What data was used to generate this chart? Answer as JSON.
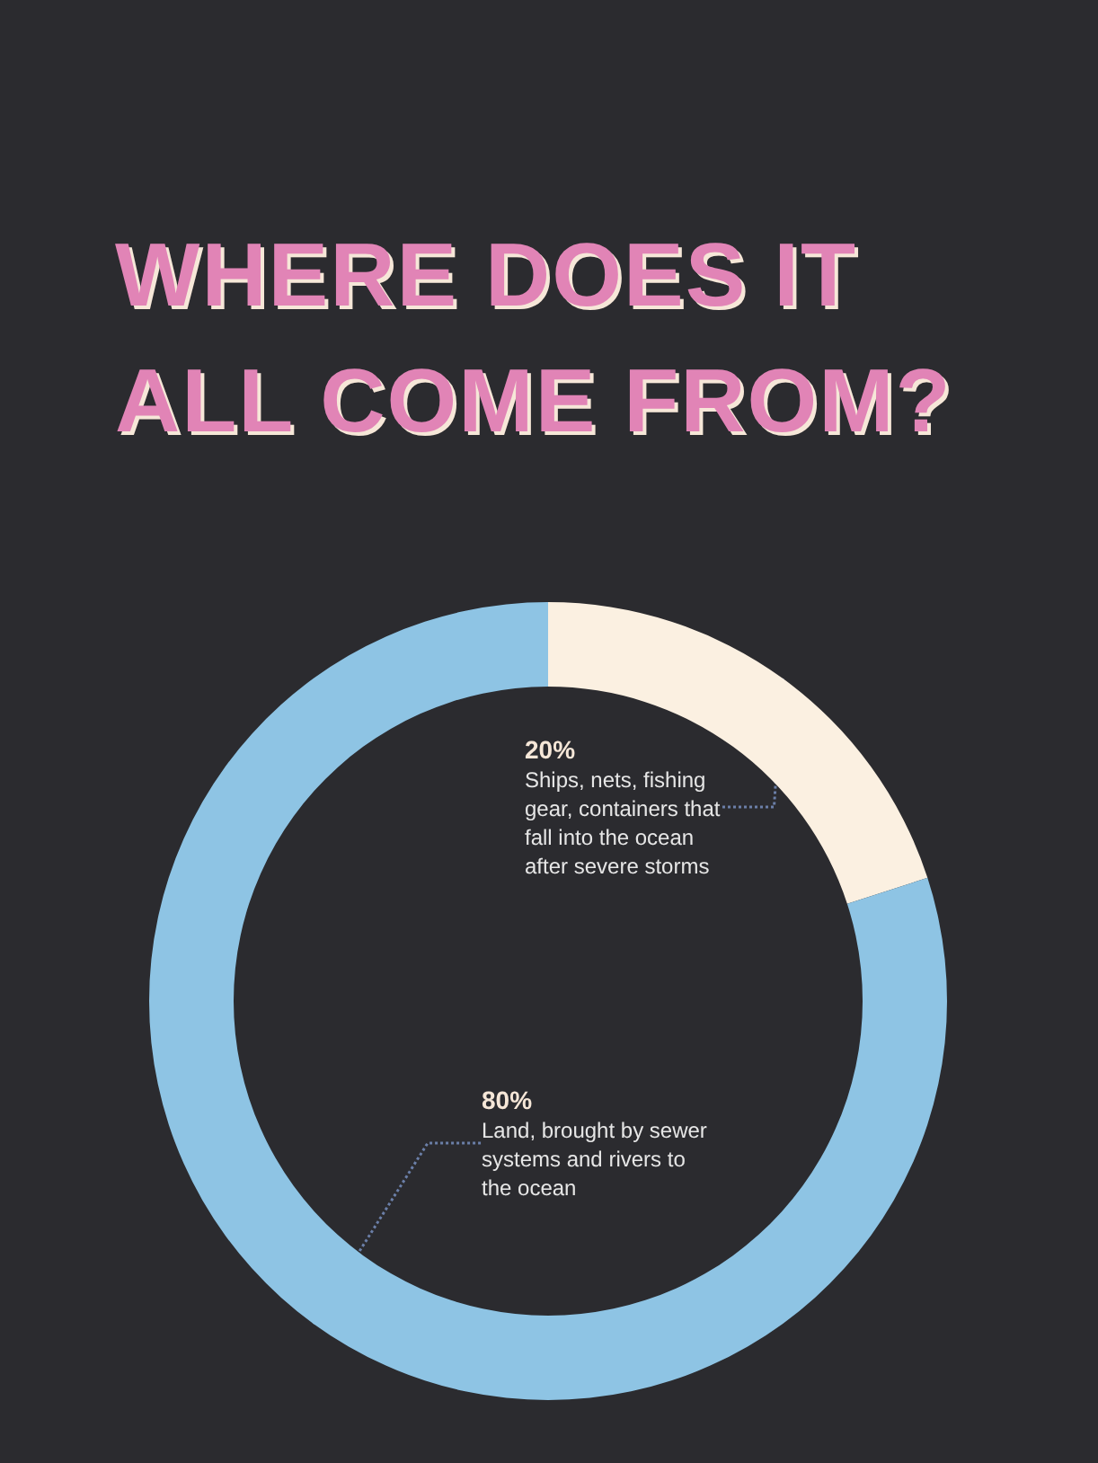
{
  "chart_data": {
    "type": "donut",
    "title": "WHERE DOES IT ALL COME FROM?",
    "categories": [
      "Ships, nets, fishing gear, containers that fall into the ocean after severe storms",
      "Land, brought by sewer systems and rivers to the ocean"
    ],
    "values": [
      20,
      80
    ],
    "value_labels": [
      "20%",
      "80%"
    ],
    "colors": [
      "#fbf0e1",
      "#8ec4e4"
    ],
    "legend": false
  }
}
